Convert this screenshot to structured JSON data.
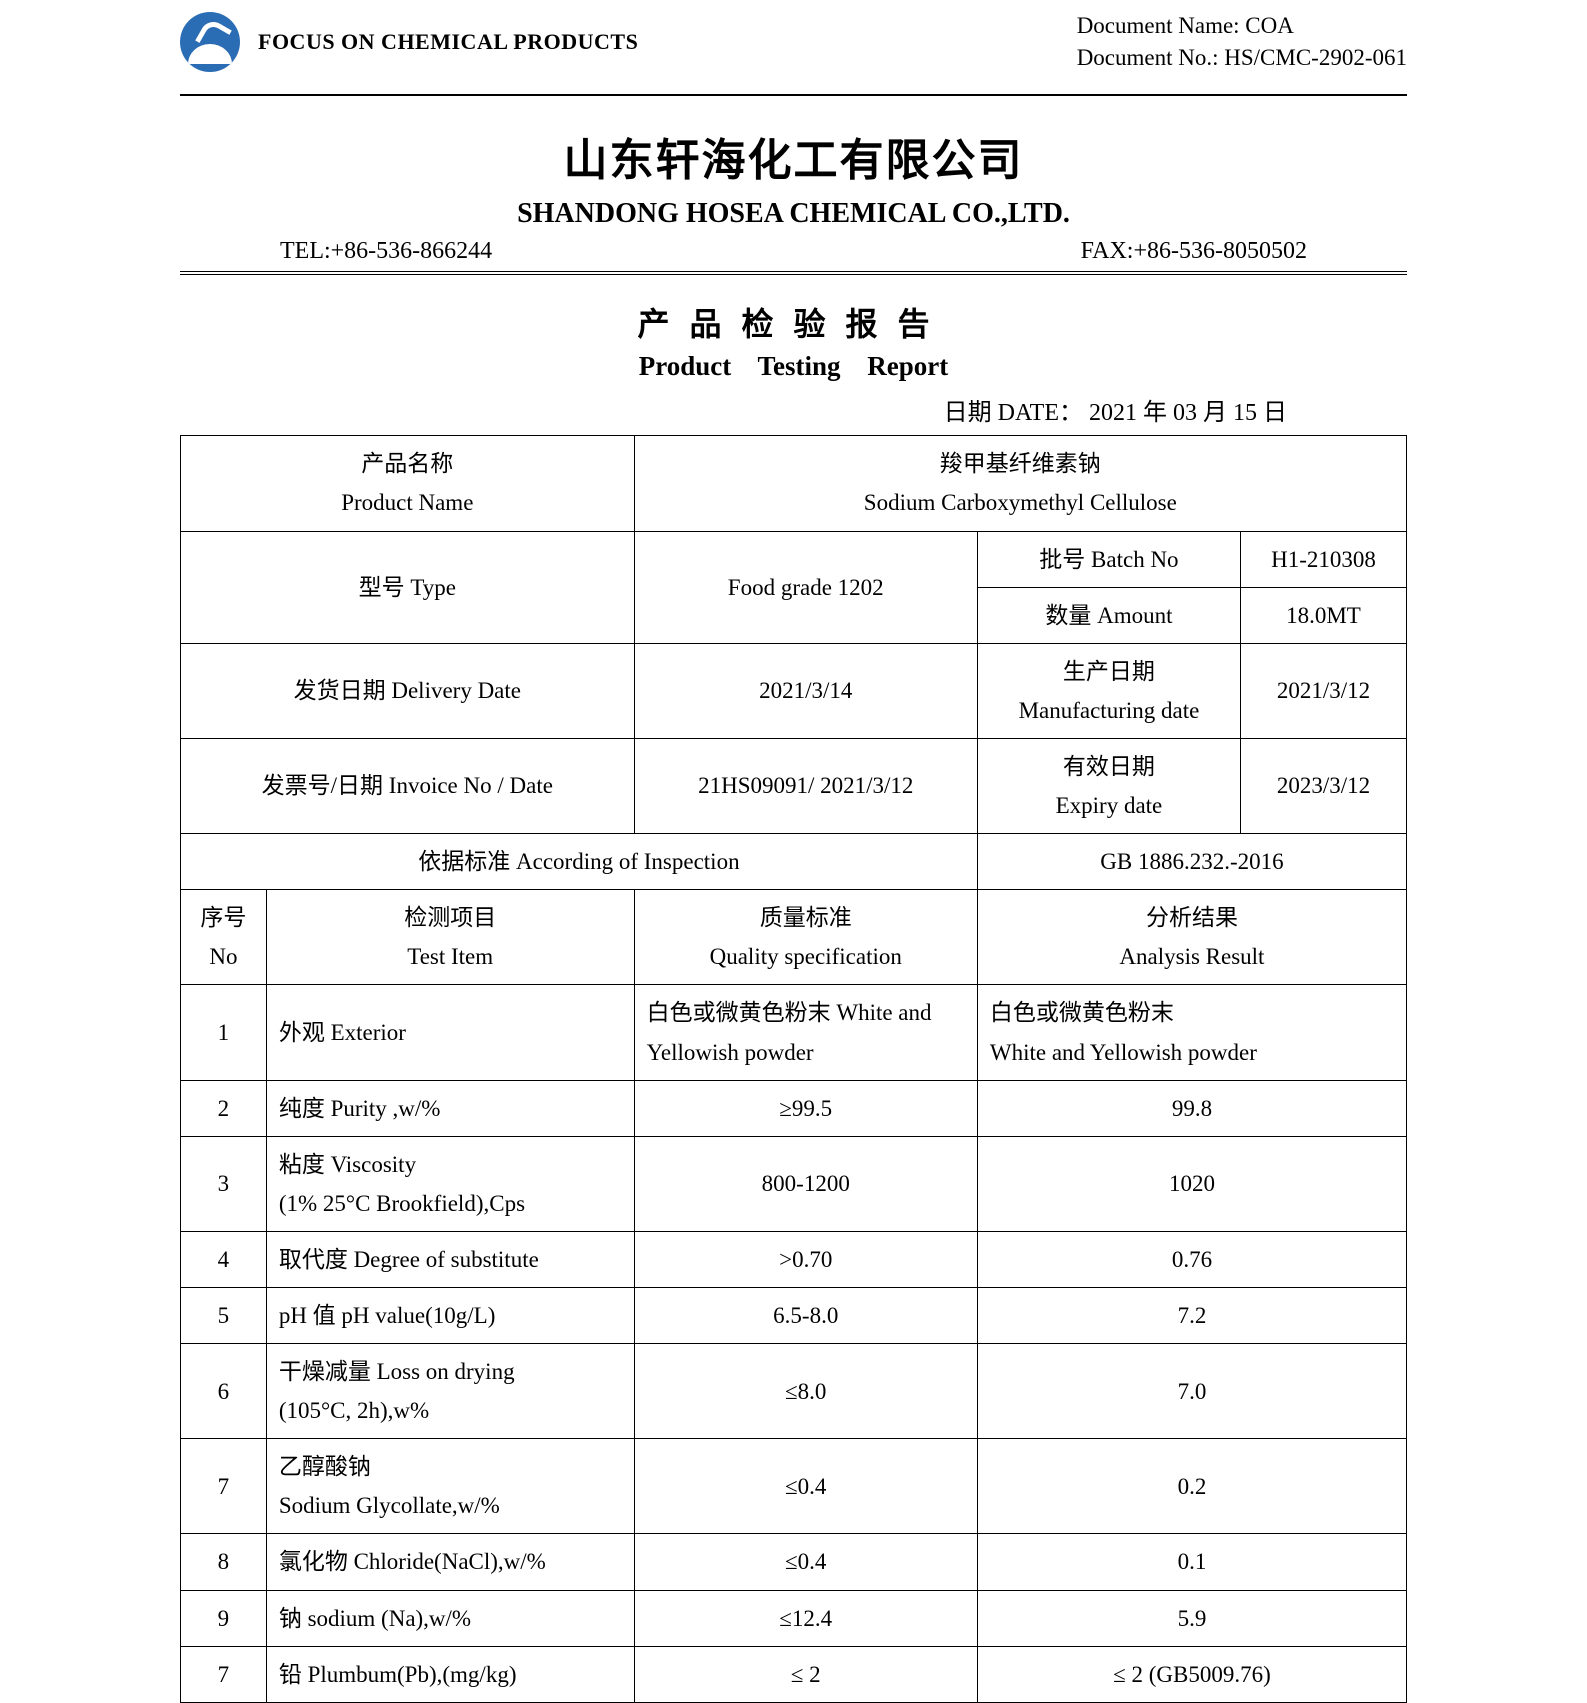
{
  "header": {
    "tagline": "FOCUS ON CHEMICAL PRODUCTS",
    "doc_name_label": "Document Name: COA",
    "doc_no_label": "Document No.: HS/CMC-2902-061"
  },
  "company": {
    "cn": "山东轩海化工有限公司",
    "en": "SHANDONG HOSEA CHEMICAL CO.,LTD.",
    "tel": "TEL:+86-536-866244",
    "fax": "FAX:+86-536-8050502"
  },
  "report": {
    "title_cn": "产品检验报告",
    "title_en": "Product  Testing  Report",
    "date": "日期 DATE： 2021 年 03 月 15 日"
  },
  "info": {
    "product_name_label_cn": "产品名称",
    "product_name_label_en": "Product Name",
    "product_name_cn": "羧甲基纤维素钠",
    "product_name_en": "Sodium Carboxymethyl Cellulose",
    "type_label": "型号 Type",
    "type_value": "Food grade 1202",
    "batch_label": "批号 Batch No",
    "batch_value": "H1-210308",
    "amount_label": "数量 Amount",
    "amount_value": "18.0MT",
    "delivery_label": "发货日期 Delivery Date",
    "delivery_value": "2021/3/14",
    "mfg_label_cn": "生产日期",
    "mfg_label_en": "Manufacturing date",
    "mfg_value": "2021/3/12",
    "invoice_label": "发票号/日期 Invoice No / Date",
    "invoice_value": "21HS09091/ 2021/3/12",
    "expiry_label_cn": "有效日期",
    "expiry_label_en": "Expiry date",
    "expiry_value": "2023/3/12",
    "standard_label": "依据标准 According of Inspection",
    "standard_value": "GB 1886.232.-2016"
  },
  "columns": {
    "no_cn": "序号",
    "no_en": "No",
    "item_cn": "检测项目",
    "item_en": "Test Item",
    "spec_cn": "质量标准",
    "spec_en": "Quality specification",
    "res_cn": "分析结果",
    "res_en": "Analysis Result"
  },
  "rows": [
    {
      "no": "1",
      "item": "外观 Exterior",
      "spec": "白色或微黄色粉末 White and Yellowish powder",
      "result": "白色或微黄色粉末\nWhite and Yellowish powder"
    },
    {
      "no": "2",
      "item": "纯度 Purity ,w/%",
      "spec": "≥99.5",
      "result": "99.8"
    },
    {
      "no": "3",
      "item": "粘度 Viscosity\n(1% 25°C Brookfield),Cps",
      "spec": "800-1200",
      "result": "1020"
    },
    {
      "no": "4",
      "item": "取代度 Degree of substitute",
      "spec": ">0.70",
      "result": "0.76"
    },
    {
      "no": "5",
      "item": "pH 值 pH value(10g/L)",
      "spec": "6.5-8.0",
      "result": "7.2"
    },
    {
      "no": "6",
      "item": "干燥减量 Loss on drying\n(105°C, 2h),w%",
      "spec": "≤8.0",
      "result": "7.0"
    },
    {
      "no": "7",
      "item": "乙醇酸钠\nSodium Glycollate,w/%",
      "spec": "≤0.4",
      "result": "0.2"
    },
    {
      "no": "8",
      "item": "氯化物 Chloride(NaCl),w/%",
      "spec": "≤0.4",
      "result": "0.1"
    },
    {
      "no": "9",
      "item": "钠 sodium (Na),w/%",
      "spec": "≤12.4",
      "result": "5.9"
    },
    {
      "no": "7",
      "item": "铅 Plumbum(Pb),(mg/kg)",
      "spec": "≤ 2",
      "result": "≤ 2 (GB5009.76)"
    }
  ]
}
